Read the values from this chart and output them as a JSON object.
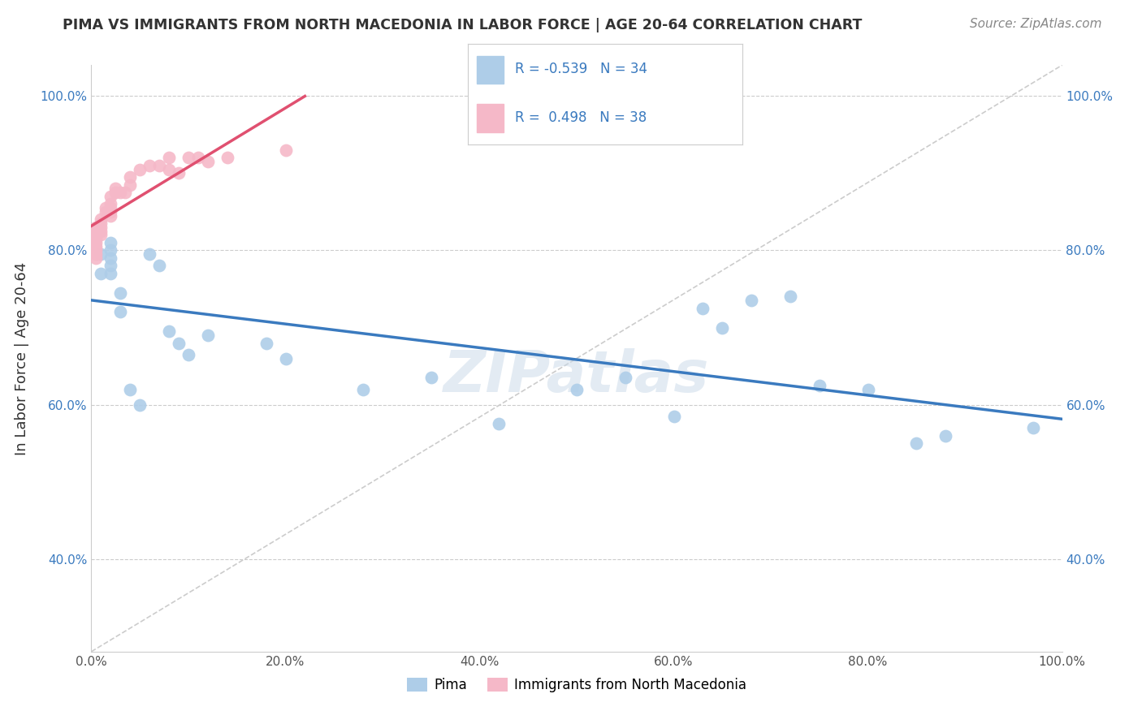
{
  "title": "PIMA VS IMMIGRANTS FROM NORTH MACEDONIA IN LABOR FORCE | AGE 20-64 CORRELATION CHART",
  "source": "Source: ZipAtlas.com",
  "ylabel": "In Labor Force | Age 20-64",
  "legend_labels": [
    "Pima",
    "Immigrants from North Macedonia"
  ],
  "r_pima": -0.539,
  "n_pima": 34,
  "r_nmac": 0.498,
  "n_nmac": 38,
  "color_pima": "#aecde8",
  "color_nmac": "#f5b8c8",
  "line_color_pima": "#3a7abf",
  "line_color_nmac": "#e05070",
  "pima_x": [
    0.01,
    0.01,
    0.02,
    0.02,
    0.02,
    0.02,
    0.02,
    0.03,
    0.03,
    0.04,
    0.05,
    0.06,
    0.07,
    0.08,
    0.09,
    0.1,
    0.12,
    0.18,
    0.2,
    0.28,
    0.35,
    0.42,
    0.5,
    0.55,
    0.6,
    0.63,
    0.65,
    0.68,
    0.72,
    0.75,
    0.8,
    0.85,
    0.88,
    0.97
  ],
  "pima_y": [
    0.795,
    0.77,
    0.81,
    0.8,
    0.79,
    0.78,
    0.77,
    0.745,
    0.72,
    0.62,
    0.6,
    0.795,
    0.78,
    0.695,
    0.68,
    0.665,
    0.69,
    0.68,
    0.66,
    0.62,
    0.635,
    0.575,
    0.62,
    0.635,
    0.585,
    0.725,
    0.7,
    0.735,
    0.74,
    0.625,
    0.62,
    0.55,
    0.56,
    0.57
  ],
  "nmac_x": [
    0.005,
    0.005,
    0.005,
    0.005,
    0.005,
    0.005,
    0.005,
    0.005,
    0.005,
    0.01,
    0.01,
    0.01,
    0.01,
    0.01,
    0.015,
    0.015,
    0.02,
    0.02,
    0.02,
    0.02,
    0.02,
    0.025,
    0.025,
    0.03,
    0.035,
    0.04,
    0.04,
    0.05,
    0.06,
    0.07,
    0.08,
    0.08,
    0.09,
    0.1,
    0.11,
    0.12,
    0.14,
    0.2
  ],
  "nmac_y": [
    0.83,
    0.825,
    0.82,
    0.815,
    0.81,
    0.805,
    0.8,
    0.795,
    0.79,
    0.84,
    0.835,
    0.83,
    0.825,
    0.82,
    0.855,
    0.85,
    0.87,
    0.86,
    0.855,
    0.85,
    0.845,
    0.88,
    0.875,
    0.875,
    0.875,
    0.895,
    0.885,
    0.905,
    0.91,
    0.91,
    0.92,
    0.905,
    0.9,
    0.92,
    0.92,
    0.915,
    0.92,
    0.93
  ],
  "xlim": [
    0.0,
    1.0
  ],
  "ylim": [
    0.28,
    1.04
  ],
  "xtick_positions": [
    0.0,
    0.2,
    0.4,
    0.6,
    0.8,
    1.0
  ],
  "xtick_labels": [
    "0.0%",
    "20.0%",
    "40.0%",
    "60.0%",
    "80.0%",
    "100.0%"
  ],
  "ytick_positions": [
    0.4,
    0.6,
    0.8,
    1.0
  ],
  "ytick_labels": [
    "40.0%",
    "60.0%",
    "80.0%",
    "100.0%"
  ],
  "background_color": "#ffffff",
  "grid_color": "#cccccc",
  "watermark_text": "ZIPatlas",
  "watermark_color": "#c8d8e8"
}
